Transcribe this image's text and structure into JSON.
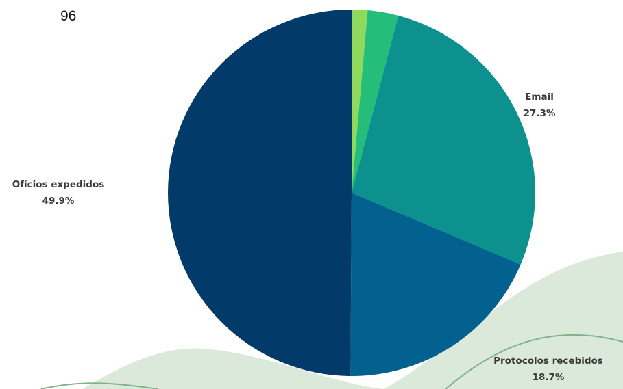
{
  "page_number": "96",
  "chart_data": {
    "type": "pie",
    "categories": [
      null,
      null,
      "Email",
      "Protocolos recebidos",
      "Ofícios expedidos"
    ],
    "values": [
      1.4,
      2.7,
      27.3,
      18.7,
      49.9
    ],
    "value_labels": [
      null,
      null,
      "27.3%",
      "18.7%",
      "49.9%"
    ],
    "colors": [
      "#8fd95c",
      "#25bd7a",
      "#0c918f",
      "#02618f",
      "#023a6a"
    ]
  }
}
